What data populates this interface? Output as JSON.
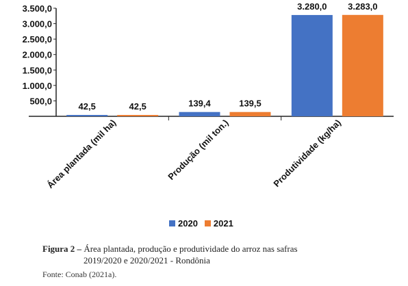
{
  "chart_data": {
    "type": "bar",
    "categories": [
      "Área plantada (mil ha)",
      "Produção (mil ton.)",
      "Produtividade (kg/ha)"
    ],
    "series": [
      {
        "name": "2020",
        "values": [
          42.5,
          139.4,
          3280.0
        ],
        "labels": [
          "42,5",
          "139,4",
          "3.280,0"
        ],
        "color": "#4472C4"
      },
      {
        "name": "2021",
        "values": [
          42.5,
          139.5,
          3283.0
        ],
        "labels": [
          "42,5",
          "139,5",
          "3.283,0"
        ],
        "color": "#ED7D31"
      }
    ],
    "y_ticks": [
      500,
      1000,
      1500,
      2000,
      2500,
      3000,
      3500
    ],
    "y_tick_labels": [
      "500,0",
      "1.000,0",
      "1.500,0",
      "2.000,0",
      "2.500,0",
      "3.000,0",
      "3.500,0"
    ],
    "ylim": [
      0,
      3500
    ],
    "grid": false,
    "legend_position": "bottom"
  },
  "caption": {
    "label": "Figura 2 –",
    "line1": "Área plantada, produção e produtividade do arroz nas safras",
    "line2": "2019/2020 e 2020/2021 - Rondônia"
  },
  "source": "Fonte: Conab (2021a)."
}
